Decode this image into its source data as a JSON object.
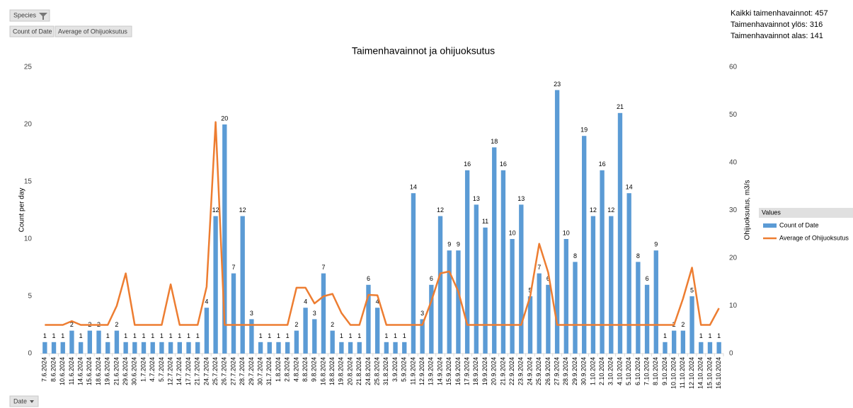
{
  "pivot": {
    "filter_button": "Species",
    "value_buttons": [
      "Count of Date",
      "Average of Ohijuoksutus"
    ],
    "axis_button": "Date"
  },
  "summary": [
    "Kaikki taimenhavainnot: 457",
    "Taimenhavainnot ylös: 316",
    "Taimenhavainnot alas: 141"
  ],
  "chart_data": {
    "type": "combo",
    "title": "Taimenhavainnot ja ohijuoksutus",
    "y_label": "Count per day",
    "y2_label": "Ohijuoksutus, m3/s",
    "legend_title": "Values",
    "categories": [
      "7.6.2024",
      "8.6.2024",
      "10.6.2024",
      "11.6.2024",
      "14.6.2024",
      "15.6.2024",
      "18.6.2024",
      "19.6.2024",
      "21.6.2024",
      "29.6.2024",
      "30.6.2024",
      "1.7.2024",
      "4.7.2024",
      "5.7.2024",
      "12.7.2024",
      "14.7.2024",
      "17.7.2024",
      "21.7.2024",
      "24.7.2024",
      "25.7.2024",
      "26.7.2024",
      "27.7.2024",
      "28.7.2024",
      "29.7.2024",
      "30.7.2024",
      "31.7.2024",
      "1.8.2024",
      "2.8.2024",
      "4.8.2024",
      "8.8.2024",
      "9.8.2024",
      "16.8.2024",
      "18.8.2024",
      "19.8.2024",
      "20.8.2024",
      "21.8.2024",
      "24.8.2024",
      "25.8.2024",
      "31.8.2024",
      "3.9.2024",
      "5.9.2024",
      "11.9.2024",
      "12.9.2024",
      "13.9.2024",
      "14.9.2024",
      "15.9.2024",
      "16.9.2024",
      "17.9.2024",
      "18.9.2024",
      "19.9.2024",
      "20.9.2024",
      "21.9.2024",
      "22.9.2024",
      "23.9.2024",
      "24.9.2024",
      "25.9.2024",
      "26.9.2024",
      "27.9.2024",
      "28.9.2024",
      "29.9.2024",
      "30.9.2024",
      "1.10.2024",
      "2.10.2024",
      "3.10.2024",
      "4.10.2024",
      "5.10.2024",
      "6.10.2024",
      "7.10.2024",
      "8.10.2024",
      "9.10.2024",
      "10.10.2024",
      "11.10.2024",
      "12.10.2024",
      "14.10.2024",
      "15.10.2024",
      "16.10.2024"
    ],
    "series": [
      {
        "name": "Count of Date",
        "type": "bar",
        "color": "#5b9bd5",
        "values": [
          1,
          1,
          1,
          2,
          1,
          2,
          2,
          1,
          2,
          1,
          1,
          1,
          1,
          1,
          1,
          1,
          1,
          1,
          4,
          12,
          20,
          7,
          12,
          3,
          1,
          1,
          1,
          1,
          2,
          4,
          3,
          7,
          2,
          1,
          1,
          1,
          6,
          4,
          1,
          1,
          1,
          14,
          3,
          6,
          12,
          9,
          9,
          16,
          13,
          11,
          18,
          16,
          10,
          13,
          5,
          7,
          6,
          23,
          10,
          8,
          19,
          12,
          16,
          12,
          21,
          14,
          8,
          6,
          9,
          1,
          2,
          2,
          5,
          1,
          1,
          1
        ]
      },
      {
        "name": "Average of Ohijuoksutus",
        "type": "line",
        "axis": "y2",
        "color": "#ed7d31",
        "values": [
          6,
          6,
          6,
          6.8,
          6,
          6,
          6,
          6,
          10,
          16.8,
          6,
          6,
          6,
          6,
          14.5,
          6,
          6,
          6,
          14,
          48.5,
          6,
          6,
          6,
          6,
          6,
          6,
          6,
          6,
          13.8,
          13.8,
          10.5,
          12,
          12.5,
          8.5,
          6,
          6,
          12.3,
          12.2,
          6,
          6,
          6,
          6,
          6,
          11,
          16.8,
          17.2,
          13,
          6,
          6,
          6,
          6,
          6,
          6,
          6,
          12,
          23,
          17,
          6,
          6,
          6,
          6,
          6,
          6,
          6,
          6,
          6,
          6,
          6,
          6,
          6,
          6,
          11.5,
          18,
          6,
          6,
          9.5
        ]
      }
    ],
    "ylim": [
      0,
      25
    ],
    "yticks": [
      0,
      5,
      10,
      15,
      20,
      25
    ],
    "y2lim": [
      0,
      60
    ],
    "y2ticks": [
      0,
      10,
      20,
      30,
      40,
      50,
      60
    ]
  }
}
